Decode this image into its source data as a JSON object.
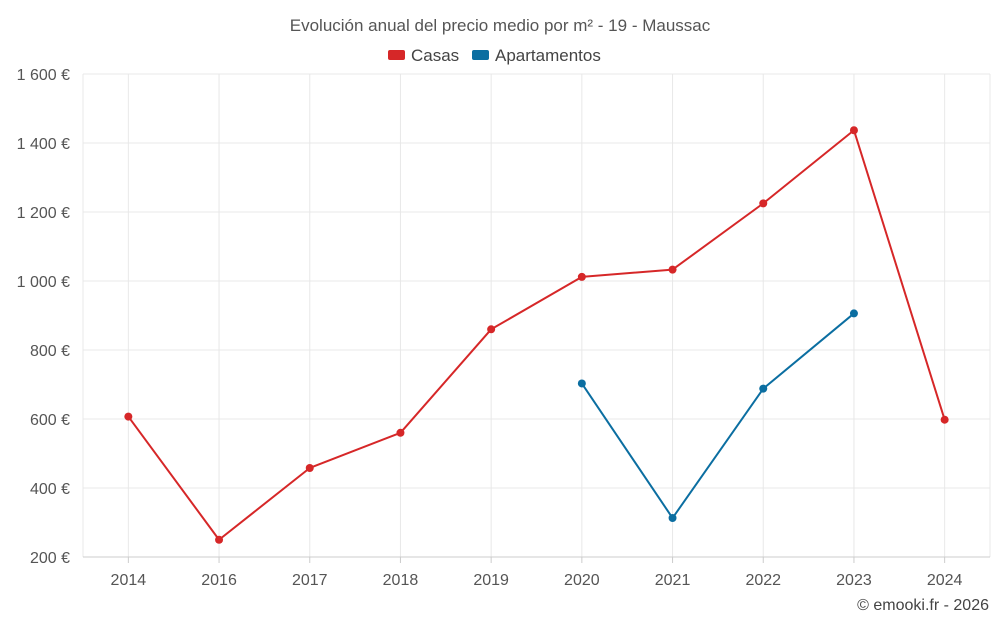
{
  "chart_data": {
    "type": "line",
    "title": "Evolución anual del precio medio por m² - 19 - Maussac",
    "categories": [
      "2014",
      "2016",
      "2017",
      "2018",
      "2019",
      "2020",
      "2021",
      "2022",
      "2023",
      "2024"
    ],
    "y_ticks": [
      "200 €",
      "400 €",
      "600 €",
      "800 €",
      "1 000 €",
      "1 200 €",
      "1 400 €",
      "1 600 €"
    ],
    "y_tick_values": [
      200,
      400,
      600,
      800,
      1000,
      1200,
      1400,
      1600
    ],
    "ylim": [
      200,
      1600
    ],
    "xlabel": "",
    "ylabel": "",
    "grid": true,
    "legend_position": "top-center",
    "series": [
      {
        "name": "Casas",
        "color": "#d62728",
        "values": [
          607,
          250,
          458,
          560,
          860,
          1012,
          1033,
          1225,
          1437,
          598
        ]
      },
      {
        "name": "Apartamentos",
        "color": "#0b6ea1",
        "values": [
          null,
          null,
          null,
          null,
          null,
          703,
          313,
          688,
          906,
          null
        ]
      }
    ]
  },
  "credit": "© emooki.fr - 2026"
}
